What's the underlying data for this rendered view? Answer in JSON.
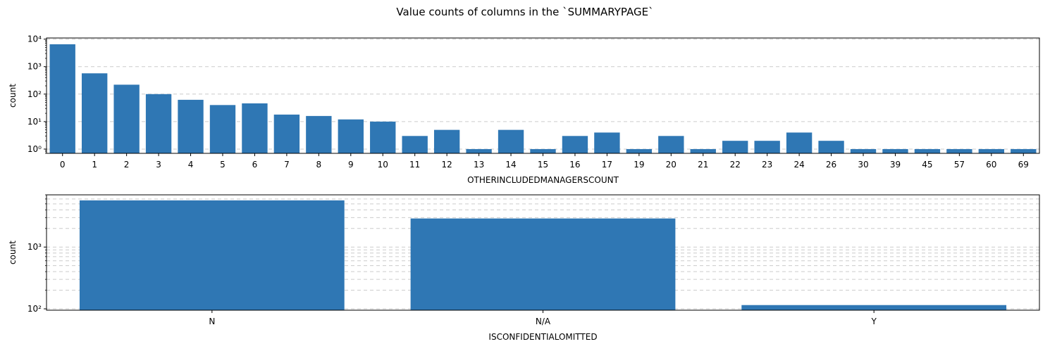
{
  "figure": {
    "title": "Value counts of columns in the `SUMMARYPAGE`"
  },
  "colors": {
    "bar": "#2f77b4",
    "grid": "#cccccc",
    "axis": "#000000"
  },
  "chart_data": [
    {
      "type": "bar",
      "scale": "log",
      "xlabel": "OTHERINCLUDEDMANAGERSCOUNT",
      "ylabel": "count",
      "ylim": [
        0.7,
        11000
      ],
      "yticks": [
        1,
        10,
        100,
        1000,
        10000
      ],
      "ytick_labels": [
        "10⁰",
        "10¹",
        "10²",
        "10³",
        "10⁴"
      ],
      "grid": "y-major-dashed",
      "categories": [
        "0",
        "1",
        "2",
        "3",
        "4",
        "5",
        "6",
        "7",
        "8",
        "9",
        "10",
        "11",
        "12",
        "13",
        "14",
        "15",
        "16",
        "17",
        "19",
        "20",
        "21",
        "22",
        "23",
        "24",
        "26",
        "30",
        "39",
        "45",
        "57",
        "60",
        "69"
      ],
      "values": [
        6500,
        570,
        220,
        100,
        62,
        40,
        46,
        18,
        16,
        12,
        10,
        3,
        5,
        1,
        5,
        1,
        3,
        4,
        1,
        3,
        1,
        2,
        2,
        4,
        2,
        1,
        1,
        1,
        1,
        1,
        1
      ]
    },
    {
      "type": "bar",
      "scale": "log",
      "xlabel": "ISCONFIDENTIALOMITTED",
      "ylabel": "count",
      "ylim": [
        95,
        7000
      ],
      "yticks": [
        100,
        1000
      ],
      "ytick_labels": [
        "10²",
        "10³"
      ],
      "grid": "y-major-minor-dashed",
      "categories": [
        "N",
        "N/A",
        "Y"
      ],
      "values": [
        5700,
        2900,
        115
      ]
    }
  ]
}
